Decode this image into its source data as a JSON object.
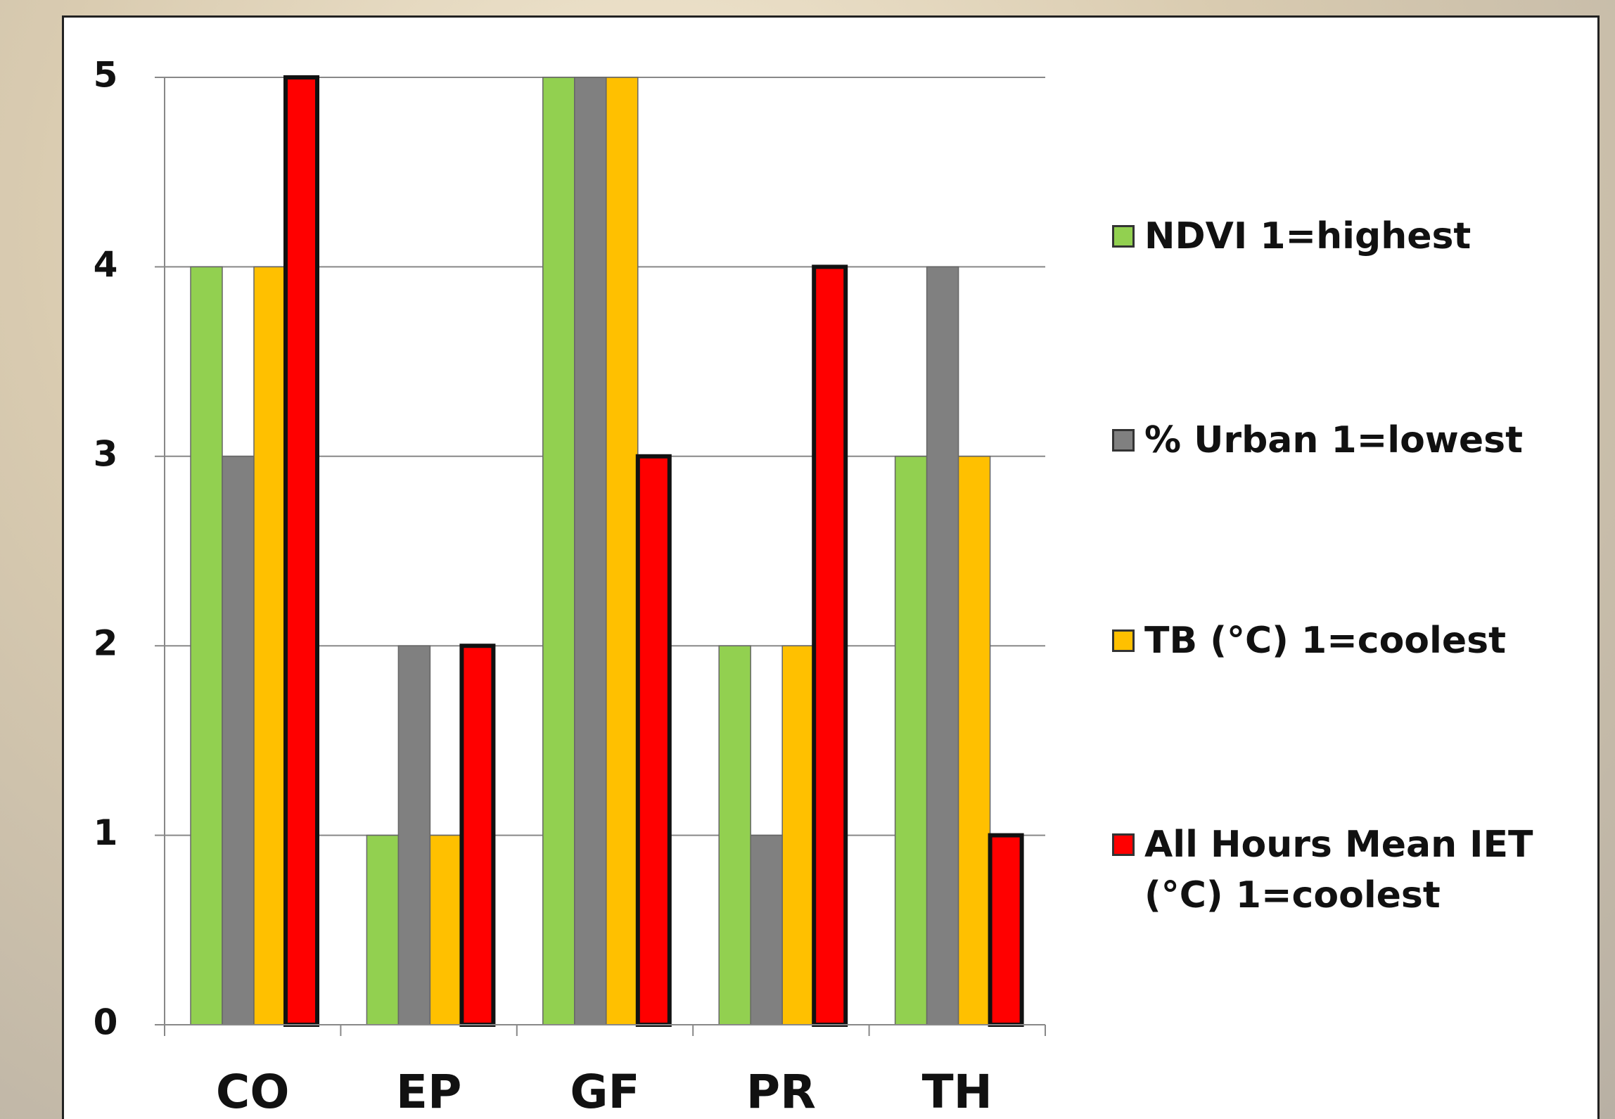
{
  "chart_data": {
    "type": "bar",
    "categories": [
      "CO",
      "EP",
      "GF",
      "PR",
      "TH"
    ],
    "series": [
      {
        "name": "NDVI 1=highest",
        "color": "#92d050",
        "values": [
          4,
          1,
          5,
          2,
          3
        ]
      },
      {
        "name": "% Urban 1=lowest",
        "color": "#808080",
        "values": [
          3,
          2,
          5,
          1,
          4
        ]
      },
      {
        "name": "TB (°C) 1=coolest",
        "color": "#ffc000",
        "values": [
          4,
          1,
          5,
          2,
          3
        ]
      },
      {
        "name": "All Hours Mean IET (°C) 1=coolest",
        "color": "#ff0000",
        "values": [
          5,
          2,
          3,
          4,
          1
        ]
      }
    ],
    "ylim": [
      0,
      5
    ],
    "yticks": [
      0,
      1,
      2,
      3,
      4,
      5
    ],
    "grid": true,
    "legend": "right"
  }
}
